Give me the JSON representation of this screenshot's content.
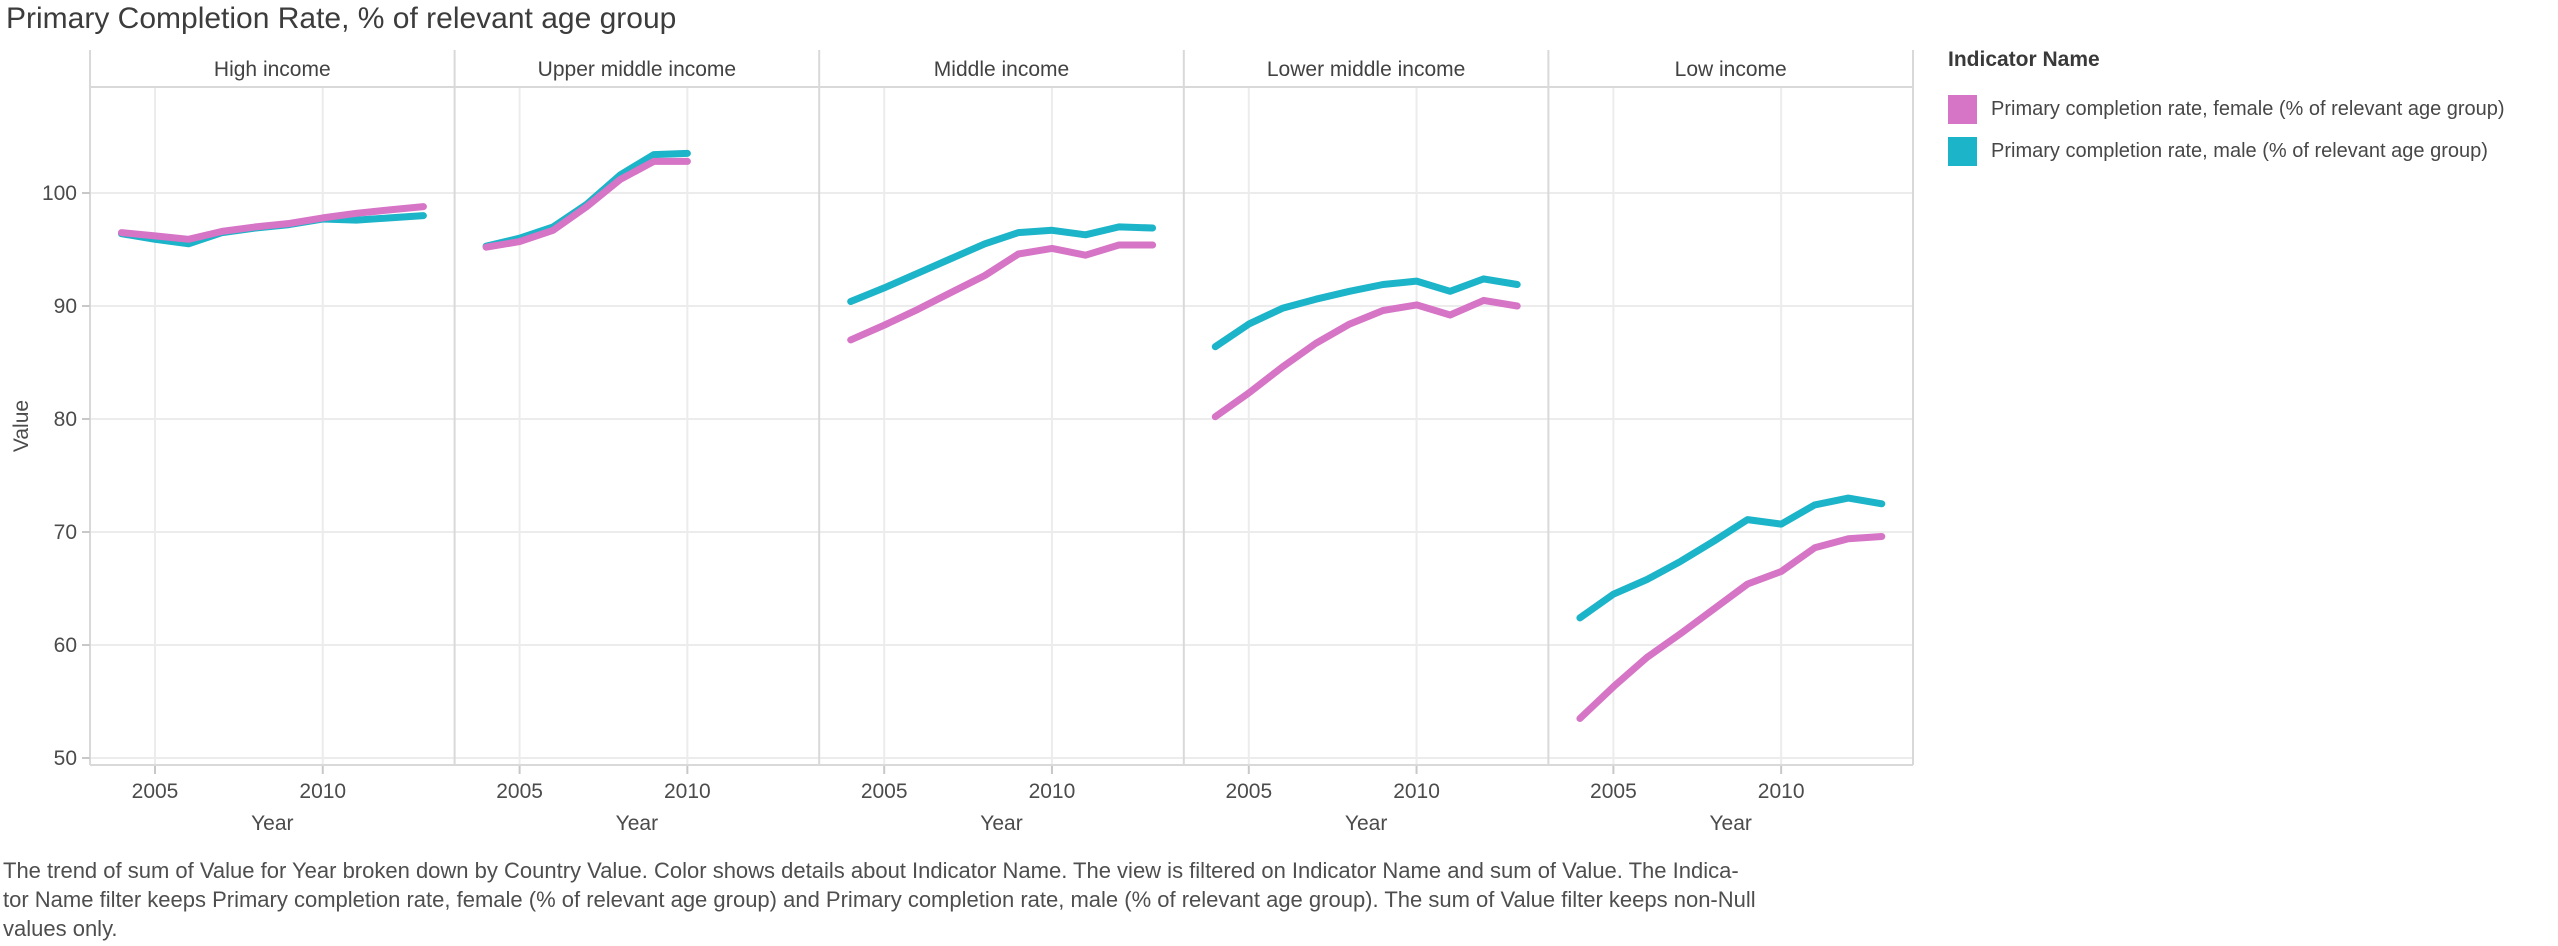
{
  "title": "Primary Completion Rate, % of relevant age group",
  "legend": {
    "title": "Indicator Name",
    "items": [
      {
        "label": "Primary completion rate, female (% of relevant age group)",
        "color": "#d674c6"
      },
      {
        "label": "Primary completion rate, male (% of relevant age group)",
        "color": "#1cb4c8"
      }
    ]
  },
  "caption_lines": [
    "The trend of sum of Value for Year broken down by Country Value.  Color shows details about Indicator Name. The view is filtered on Indicator Name and sum of Value. The Indica-",
    "tor Name filter keeps Primary completion rate, female (% of relevant age group) and Primary completion rate, male (% of relevant age group). The sum of Value filter keeps non-Null",
    "values only."
  ],
  "chart_data": {
    "type": "line",
    "title": "Primary Completion Rate, % of relevant age group",
    "facet_field": "Country Value",
    "xlabel": "Year",
    "ylabel": "Value",
    "x_ticks": [
      2005,
      2010
    ],
    "y_ticks": [
      50,
      60,
      70,
      80,
      90,
      100
    ],
    "grid": true,
    "legend_position": "right",
    "series_meta": [
      {
        "key": "female",
        "name": "Primary completion rate, female (% of relevant age group)",
        "color": "#d674c6"
      },
      {
        "key": "male",
        "name": "Primary completion rate, male (% of relevant age group)",
        "color": "#1cb4c8"
      }
    ],
    "panels": [
      {
        "category": "High income",
        "x": [
          2004,
          2005,
          2006,
          2007,
          2008,
          2009,
          2010,
          2011,
          2012,
          2013
        ],
        "series": [
          {
            "key": "male",
            "values": [
              96.4,
              95.9,
              95.5,
              96.5,
              96.9,
              97.2,
              97.7,
              97.6,
              97.8,
              98.0
            ]
          },
          {
            "key": "female",
            "values": [
              96.5,
              96.2,
              95.9,
              96.6,
              97.0,
              97.3,
              97.8,
              98.2,
              98.5,
              98.8
            ]
          }
        ]
      },
      {
        "category": "Upper middle income",
        "x": [
          2004,
          2005,
          2006,
          2007,
          2008,
          2009,
          2010
        ],
        "series": [
          {
            "key": "male",
            "values": [
              95.3,
              96.0,
              97.0,
              99.0,
              101.6,
              103.4,
              103.5
            ]
          },
          {
            "key": "female",
            "values": [
              95.2,
              95.7,
              96.7,
              98.8,
              101.2,
              102.8,
              102.8
            ]
          }
        ]
      },
      {
        "category": "Middle income",
        "x": [
          2004,
          2005,
          2006,
          2007,
          2008,
          2009,
          2010,
          2011,
          2012,
          2013
        ],
        "series": [
          {
            "key": "male",
            "values": [
              90.4,
              91.6,
              92.9,
              94.2,
              95.5,
              96.5,
              96.7,
              96.3,
              97.0,
              96.9
            ]
          },
          {
            "key": "female",
            "values": [
              87.0,
              88.3,
              89.7,
              91.2,
              92.7,
              94.6,
              95.1,
              94.5,
              95.4,
              95.4
            ]
          }
        ]
      },
      {
        "category": "Lower middle income",
        "x": [
          2004,
          2005,
          2006,
          2007,
          2008,
          2009,
          2010,
          2011,
          2012,
          2013
        ],
        "series": [
          {
            "key": "male",
            "values": [
              86.4,
              88.4,
              89.8,
              90.6,
              91.3,
              91.9,
              92.2,
              91.3,
              92.4,
              91.9
            ]
          },
          {
            "key": "female",
            "values": [
              80.2,
              82.3,
              84.6,
              86.7,
              88.4,
              89.6,
              90.1,
              89.2,
              90.5,
              90.0
            ]
          }
        ]
      },
      {
        "category": "Low income",
        "x": [
          2004,
          2005,
          2006,
          2007,
          2008,
          2009,
          2010,
          2011,
          2012,
          2013
        ],
        "series": [
          {
            "key": "male",
            "values": [
              62.4,
              64.5,
              65.8,
              67.4,
              69.2,
              71.1,
              70.7,
              72.4,
              73.0,
              72.5
            ]
          },
          {
            "key": "female",
            "values": [
              53.5,
              56.3,
              58.9,
              61.0,
              63.2,
              65.4,
              66.5,
              68.6,
              69.4,
              69.6
            ]
          }
        ]
      }
    ]
  }
}
